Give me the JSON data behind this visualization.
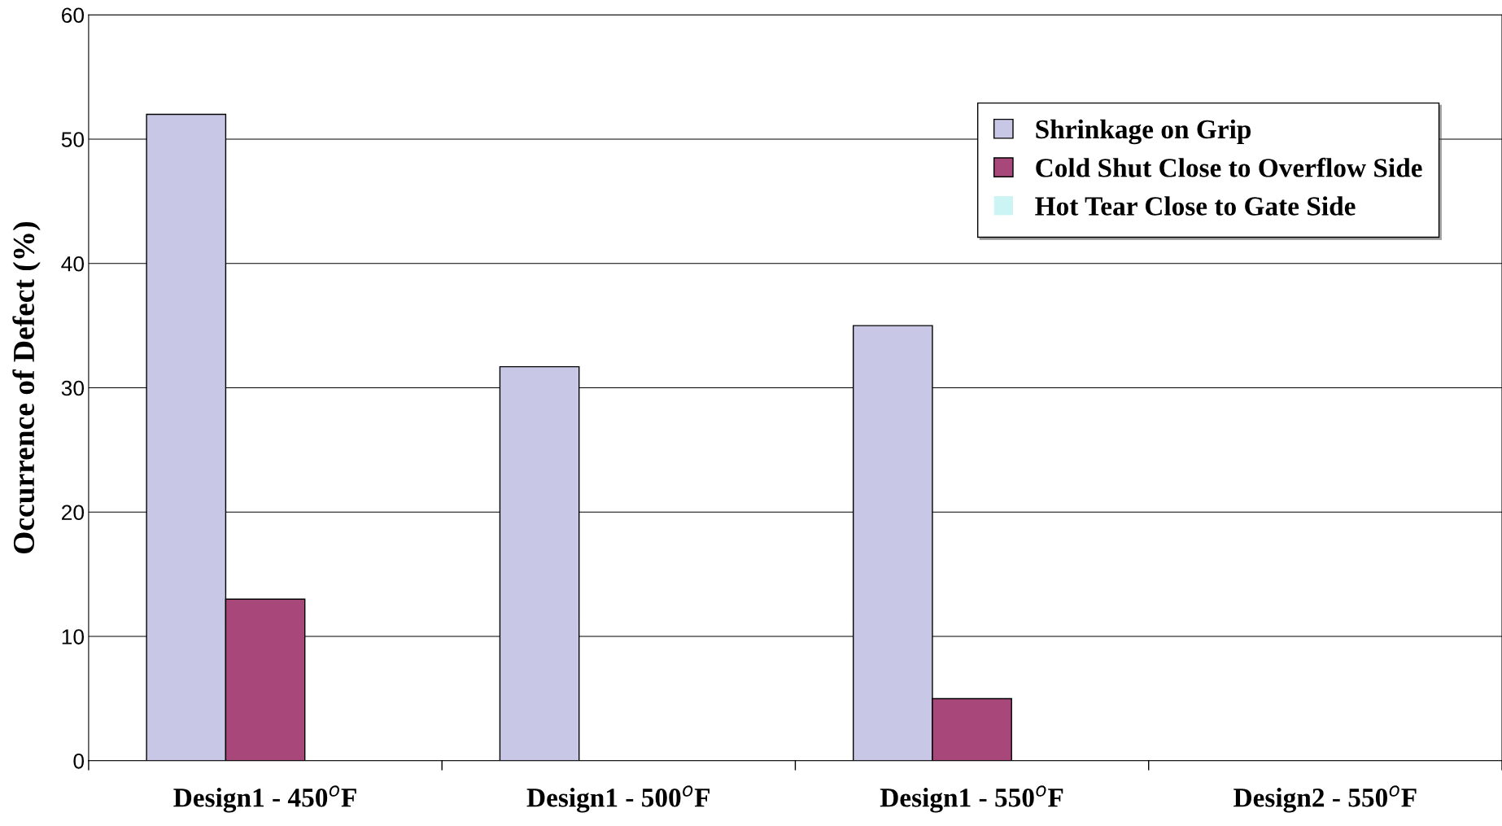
{
  "chart_data": {
    "type": "bar",
    "ylabel": "Occurrence of Defect (%)",
    "categories": [
      "Design1 - 450$^{o}$F",
      "Design1 - 500$^{o}$F",
      "Design1 - 550$^{o}$F",
      "Design2 - 550$^{o}$F"
    ],
    "series": [
      {
        "name": "Shrinkage on Grip",
        "color": "#c8c8e6",
        "values": [
          52,
          31.7,
          35,
          0
        ]
      },
      {
        "name": "Cold Shut Close to Overflow Side",
        "color": "#a8487a",
        "values": [
          13,
          0,
          5,
          0
        ]
      },
      {
        "name": "Hot Tear Close to Gate Side",
        "color": "#ccf4f4",
        "values": [
          0,
          0,
          0,
          0
        ]
      }
    ],
    "ylim": [
      0,
      60
    ],
    "yticks": [
      0,
      10,
      20,
      30,
      40,
      50,
      60
    ],
    "grid": "y",
    "legend": "top right"
  }
}
